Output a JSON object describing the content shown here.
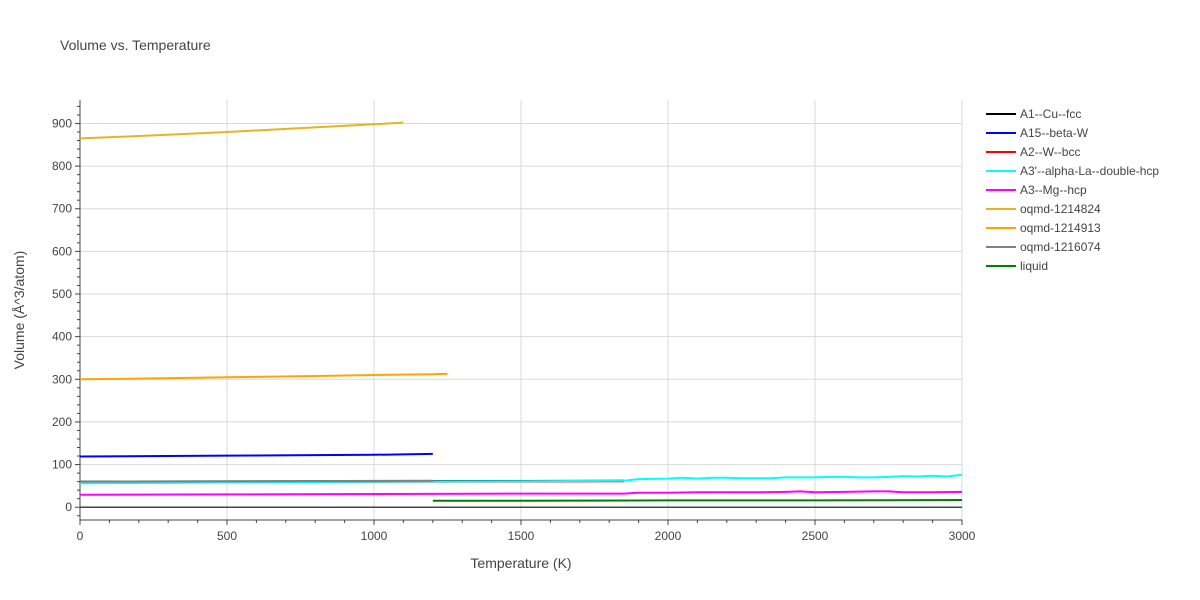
{
  "chart_data": {
    "type": "line",
    "title": "Volume vs. Temperature",
    "xlabel": "Temperature (K)",
    "ylabel": "Volume (Å^3/atom)",
    "xlim": [
      0,
      3000
    ],
    "ylim": [
      -30,
      955
    ],
    "xticks": [
      0,
      500,
      1000,
      1500,
      2000,
      2500,
      3000
    ],
    "yticks": [
      0,
      100,
      200,
      300,
      400,
      500,
      600,
      700,
      800,
      900
    ],
    "grid": true,
    "legend_position": "right",
    "series": [
      {
        "name": "A1--Cu--fcc",
        "color": "#000000",
        "x": [
          0,
          1850
        ],
        "y": [
          60,
          62
        ]
      },
      {
        "name": "A15--beta-W",
        "color": "#0000ff",
        "x": [
          0,
          500,
          1000,
          1200
        ],
        "y": [
          119,
          121,
          123,
          125
        ]
      },
      {
        "name": "A2--W--bcc",
        "color": "#ff0000",
        "x": [
          0,
          1850
        ],
        "y": [
          58,
          61
        ]
      },
      {
        "name": "A3'--alpha-La--double-hcp",
        "color": "#00ffff",
        "x": [
          0,
          500,
          1000,
          1500,
          1850,
          1900,
          2000,
          2050,
          2100,
          2150,
          2200,
          2250,
          2300,
          2350,
          2400,
          2450,
          2500,
          2550,
          2600,
          2650,
          2700,
          2750,
          2800,
          2850,
          2900,
          2950,
          3000
        ],
        "y": [
          56,
          58,
          60,
          61,
          62,
          66,
          67,
          69,
          67,
          69,
          69,
          68,
          68,
          68,
          70,
          70,
          70,
          71,
          71,
          70,
          70,
          71,
          73,
          72,
          74,
          72,
          76
        ]
      },
      {
        "name": "A3--Mg--hcp",
        "color": "#ff00ff",
        "x": [
          0,
          500,
          1000,
          1500,
          1850,
          1900,
          2000,
          2100,
          2200,
          2300,
          2400,
          2450,
          2500,
          2600,
          2700,
          2750,
          2800,
          2900,
          3000
        ],
        "y": [
          29,
          30,
          31,
          32,
          32,
          34,
          34,
          35,
          35,
          35,
          36,
          37,
          35,
          36,
          37,
          37,
          35,
          35,
          36
        ]
      },
      {
        "name": "oqmd-1214824",
        "color": "#e6b422",
        "x": [
          0,
          250,
          500,
          750,
          1000,
          1100
        ],
        "y": [
          865,
          872,
          880,
          889,
          898,
          902
        ]
      },
      {
        "name": "oqmd-1214913",
        "color": "#ffa500",
        "x": [
          0,
          250,
          500,
          750,
          1000,
          1200,
          1250
        ],
        "y": [
          300,
          302,
          305,
          307,
          310,
          312,
          313
        ]
      },
      {
        "name": "oqmd-1216074",
        "color": "#808080",
        "x": [
          0,
          1200
        ],
        "y": [
          60,
          62
        ]
      },
      {
        "name": "liquid",
        "color": "#008000",
        "x": [
          1200,
          1500,
          2000,
          2500,
          3000
        ],
        "y": [
          15,
          15,
          16,
          16,
          17
        ]
      }
    ]
  }
}
